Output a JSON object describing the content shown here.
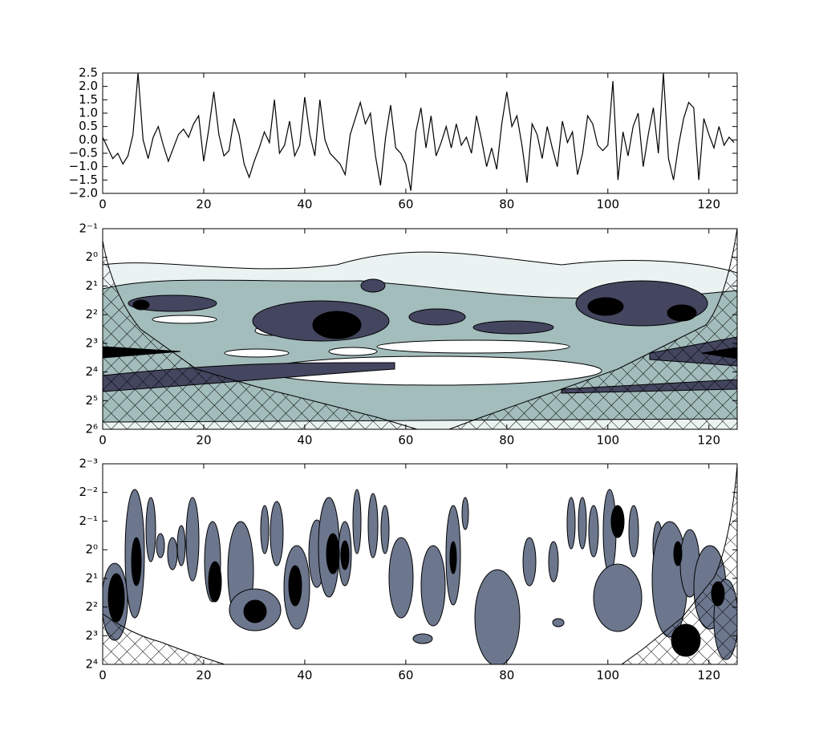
{
  "chart_data": [
    {
      "type": "line",
      "x": [
        0,
        1,
        2,
        3,
        4,
        5,
        6,
        7,
        8,
        9,
        10,
        11,
        12,
        13,
        14,
        15,
        16,
        17,
        18,
        19,
        20,
        21,
        22,
        23,
        24,
        25,
        26,
        27,
        28,
        29,
        30,
        31,
        32,
        33,
        34,
        35,
        36,
        37,
        38,
        39,
        40,
        41,
        42,
        43,
        44,
        45,
        46,
        47,
        48,
        49,
        50,
        51,
        52,
        53,
        54,
        55,
        56,
        57,
        58,
        59,
        60,
        61,
        62,
        63,
        64,
        65,
        66,
        67,
        68,
        69,
        70,
        71,
        72,
        73,
        74,
        75,
        76,
        77,
        78,
        79,
        80,
        81,
        82,
        83,
        84,
        85,
        86,
        87,
        88,
        89,
        90,
        91,
        92,
        93,
        94,
        95,
        96,
        97,
        98,
        99,
        100,
        101,
        102,
        103,
        104,
        105,
        106,
        107,
        108,
        109,
        110,
        111,
        112,
        113,
        114,
        115,
        116,
        117,
        118,
        119,
        120,
        121,
        122,
        123,
        124,
        125
      ],
      "series": [
        {
          "color": "#000000",
          "values": [
            0.1,
            -0.3,
            -0.7,
            -0.5,
            -0.9,
            -0.6,
            0.2,
            2.5,
            0.0,
            -0.7,
            0.1,
            0.5,
            -0.2,
            -0.8,
            -0.3,
            0.2,
            0.4,
            0.1,
            0.6,
            0.9,
            -0.8,
            0.4,
            1.8,
            0.2,
            -0.6,
            -0.4,
            0.8,
            0.2,
            -0.9,
            -1.4,
            -0.8,
            -0.3,
            0.3,
            -0.1,
            1.5,
            -0.5,
            -0.2,
            0.7,
            -0.6,
            -0.2,
            1.6,
            0.2,
            -0.6,
            1.5,
            0.0,
            -0.5,
            -0.7,
            -0.9,
            -1.3,
            0.2,
            0.8,
            1.4,
            0.6,
            1.0,
            -0.6,
            -1.7,
            0.1,
            1.3,
            -0.3,
            -0.5,
            -0.9,
            -1.9,
            0.3,
            1.2,
            -0.3,
            0.9,
            -0.6,
            -0.1,
            0.5,
            -0.3,
            0.6,
            -0.2,
            0.1,
            -0.5,
            0.9,
            0.0,
            -1.0,
            -0.3,
            -1.1,
            0.6,
            1.8,
            0.5,
            0.9,
            -0.2,
            -1.6,
            0.6,
            0.2,
            -0.7,
            0.5,
            -0.3,
            -1.0,
            0.7,
            -0.1,
            0.3,
            -1.3,
            -0.5,
            0.9,
            0.6,
            -0.2,
            -0.4,
            -0.2,
            2.2,
            -1.5,
            0.3,
            -0.6,
            0.5,
            1.0,
            -1.0,
            0.2,
            1.2,
            -0.5,
            2.5,
            -0.7,
            -1.5,
            -0.2,
            0.8,
            1.4,
            1.2,
            -1.5,
            0.8,
            0.2,
            -0.3,
            0.5,
            -0.2,
            0.1,
            -0.1
          ]
        }
      ],
      "xlim": [
        0,
        125.6
      ],
      "xticks": [
        0,
        20,
        40,
        60,
        80,
        100,
        120
      ],
      "ylim": [
        -2.0,
        2.5
      ],
      "yticks": [
        {
          "value": -2.0,
          "label": "−2.0"
        },
        {
          "value": -1.5,
          "label": "−1.5"
        },
        {
          "value": -1.0,
          "label": "−1.0"
        },
        {
          "value": -0.5,
          "label": "−0.5"
        },
        {
          "value": 0.0,
          "label": "0.0"
        },
        0.5,
        {
          "value": 1.0,
          "label": "1.0"
        },
        1.5,
        {
          "value": 2.0,
          "label": "2.0"
        },
        2.5
      ]
    },
    {
      "type": "contour",
      "xlim": [
        0,
        125.6
      ],
      "xticks": [
        0,
        20,
        40,
        60,
        80,
        100,
        120
      ],
      "ylim": [
        0.5,
        64
      ],
      "yscale": "log2",
      "yinverted": true,
      "yticks": [
        {
          "value": 0.5,
          "label": "2⁻¹"
        },
        {
          "value": 1,
          "label": "2⁰"
        },
        {
          "value": 2,
          "label": "2¹"
        },
        {
          "value": 4,
          "label": "2²"
        },
        {
          "value": 8,
          "label": "2³"
        },
        {
          "value": 16,
          "label": "2⁴"
        },
        {
          "value": 32,
          "label": "2⁵"
        },
        {
          "value": 64,
          "label": "2⁶"
        }
      ]
    },
    {
      "type": "contour",
      "xlim": [
        0,
        125.6
      ],
      "xticks": [
        0,
        20,
        40,
        60,
        80,
        100,
        120
      ],
      "ylim": [
        0.125,
        16
      ],
      "yscale": "log2",
      "yinverted": true,
      "yticks": [
        {
          "value": 0.125,
          "label": "2⁻³"
        },
        {
          "value": 0.25,
          "label": "2⁻²"
        },
        {
          "value": 0.5,
          "label": "2⁻¹"
        },
        {
          "value": 1,
          "label": "2⁰"
        },
        {
          "value": 2,
          "label": "2¹"
        },
        {
          "value": 4,
          "label": "2²"
        },
        {
          "value": 8,
          "label": "2³"
        },
        {
          "value": 16,
          "label": "2⁴"
        }
      ]
    }
  ]
}
